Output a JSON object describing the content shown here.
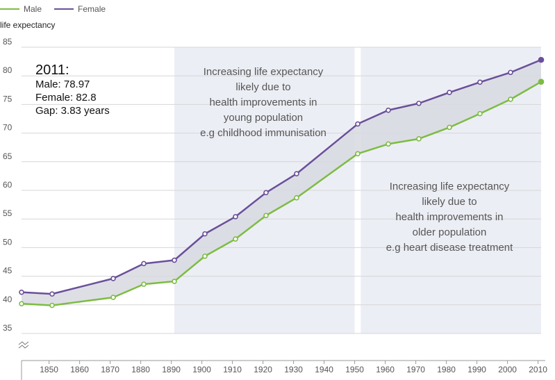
{
  "legend": [
    {
      "name": "Male",
      "color": "#7dbc42"
    },
    {
      "name": "Female",
      "color": "#6a4f9a"
    }
  ],
  "callout": {
    "year": "2011:",
    "male": "Male: 78.97",
    "female": "Female: 82.8",
    "gap": "Gap: 3.83 years"
  },
  "annotations": {
    "young": [
      "Increasing life expectancy",
      "likely due to",
      "health improvements in",
      "young population",
      "e.g childhood immunisation"
    ],
    "older": [
      "Increasing life expectancy",
      "likely due to",
      "health improvements in",
      "older population",
      "e.g heart disease treatment"
    ]
  },
  "chart_data": {
    "type": "line",
    "ylabel": "life expectancy",
    "xlabel": "",
    "ylim": [
      35,
      85
    ],
    "xlim": [
      1841,
      2011
    ],
    "y_ticks": [
      35,
      40,
      45,
      50,
      55,
      60,
      65,
      70,
      75,
      80,
      85
    ],
    "x_ticks": [
      1850,
      1860,
      1870,
      1880,
      1890,
      1900,
      1910,
      1920,
      1930,
      1940,
      1950,
      1960,
      1970,
      1980,
      1990,
      2000,
      2010
    ],
    "axis_break": true,
    "grid": true,
    "shaded_periods": [
      [
        1891,
        1950
      ],
      [
        1952,
        2011
      ]
    ],
    "series": [
      {
        "name": "Male",
        "color": "#7dbc42",
        "points": [
          [
            1841,
            40.2
          ],
          [
            1851,
            39.9
          ],
          [
            1871,
            41.3
          ],
          [
            1881,
            43.6
          ],
          [
            1891,
            44.1
          ],
          [
            1901,
            48.5
          ],
          [
            1911,
            51.5
          ],
          [
            1921,
            55.6
          ],
          [
            1931,
            58.7
          ],
          [
            1951,
            66.4
          ],
          [
            1961,
            68.1
          ],
          [
            1971,
            69.0
          ],
          [
            1981,
            71.0
          ],
          [
            1991,
            73.4
          ],
          [
            2001,
            75.9
          ],
          [
            2011,
            78.97
          ]
        ]
      },
      {
        "name": "Female",
        "color": "#6a4f9a",
        "points": [
          [
            1841,
            42.2
          ],
          [
            1851,
            41.9
          ],
          [
            1871,
            44.6
          ],
          [
            1881,
            47.2
          ],
          [
            1891,
            47.8
          ],
          [
            1901,
            52.4
          ],
          [
            1911,
            55.4
          ],
          [
            1921,
            59.6
          ],
          [
            1931,
            62.9
          ],
          [
            1951,
            71.6
          ],
          [
            1961,
            74.0
          ],
          [
            1971,
            75.2
          ],
          [
            1981,
            77.1
          ],
          [
            1991,
            78.9
          ],
          [
            2001,
            80.6
          ],
          [
            2011,
            82.8
          ]
        ]
      }
    ]
  }
}
